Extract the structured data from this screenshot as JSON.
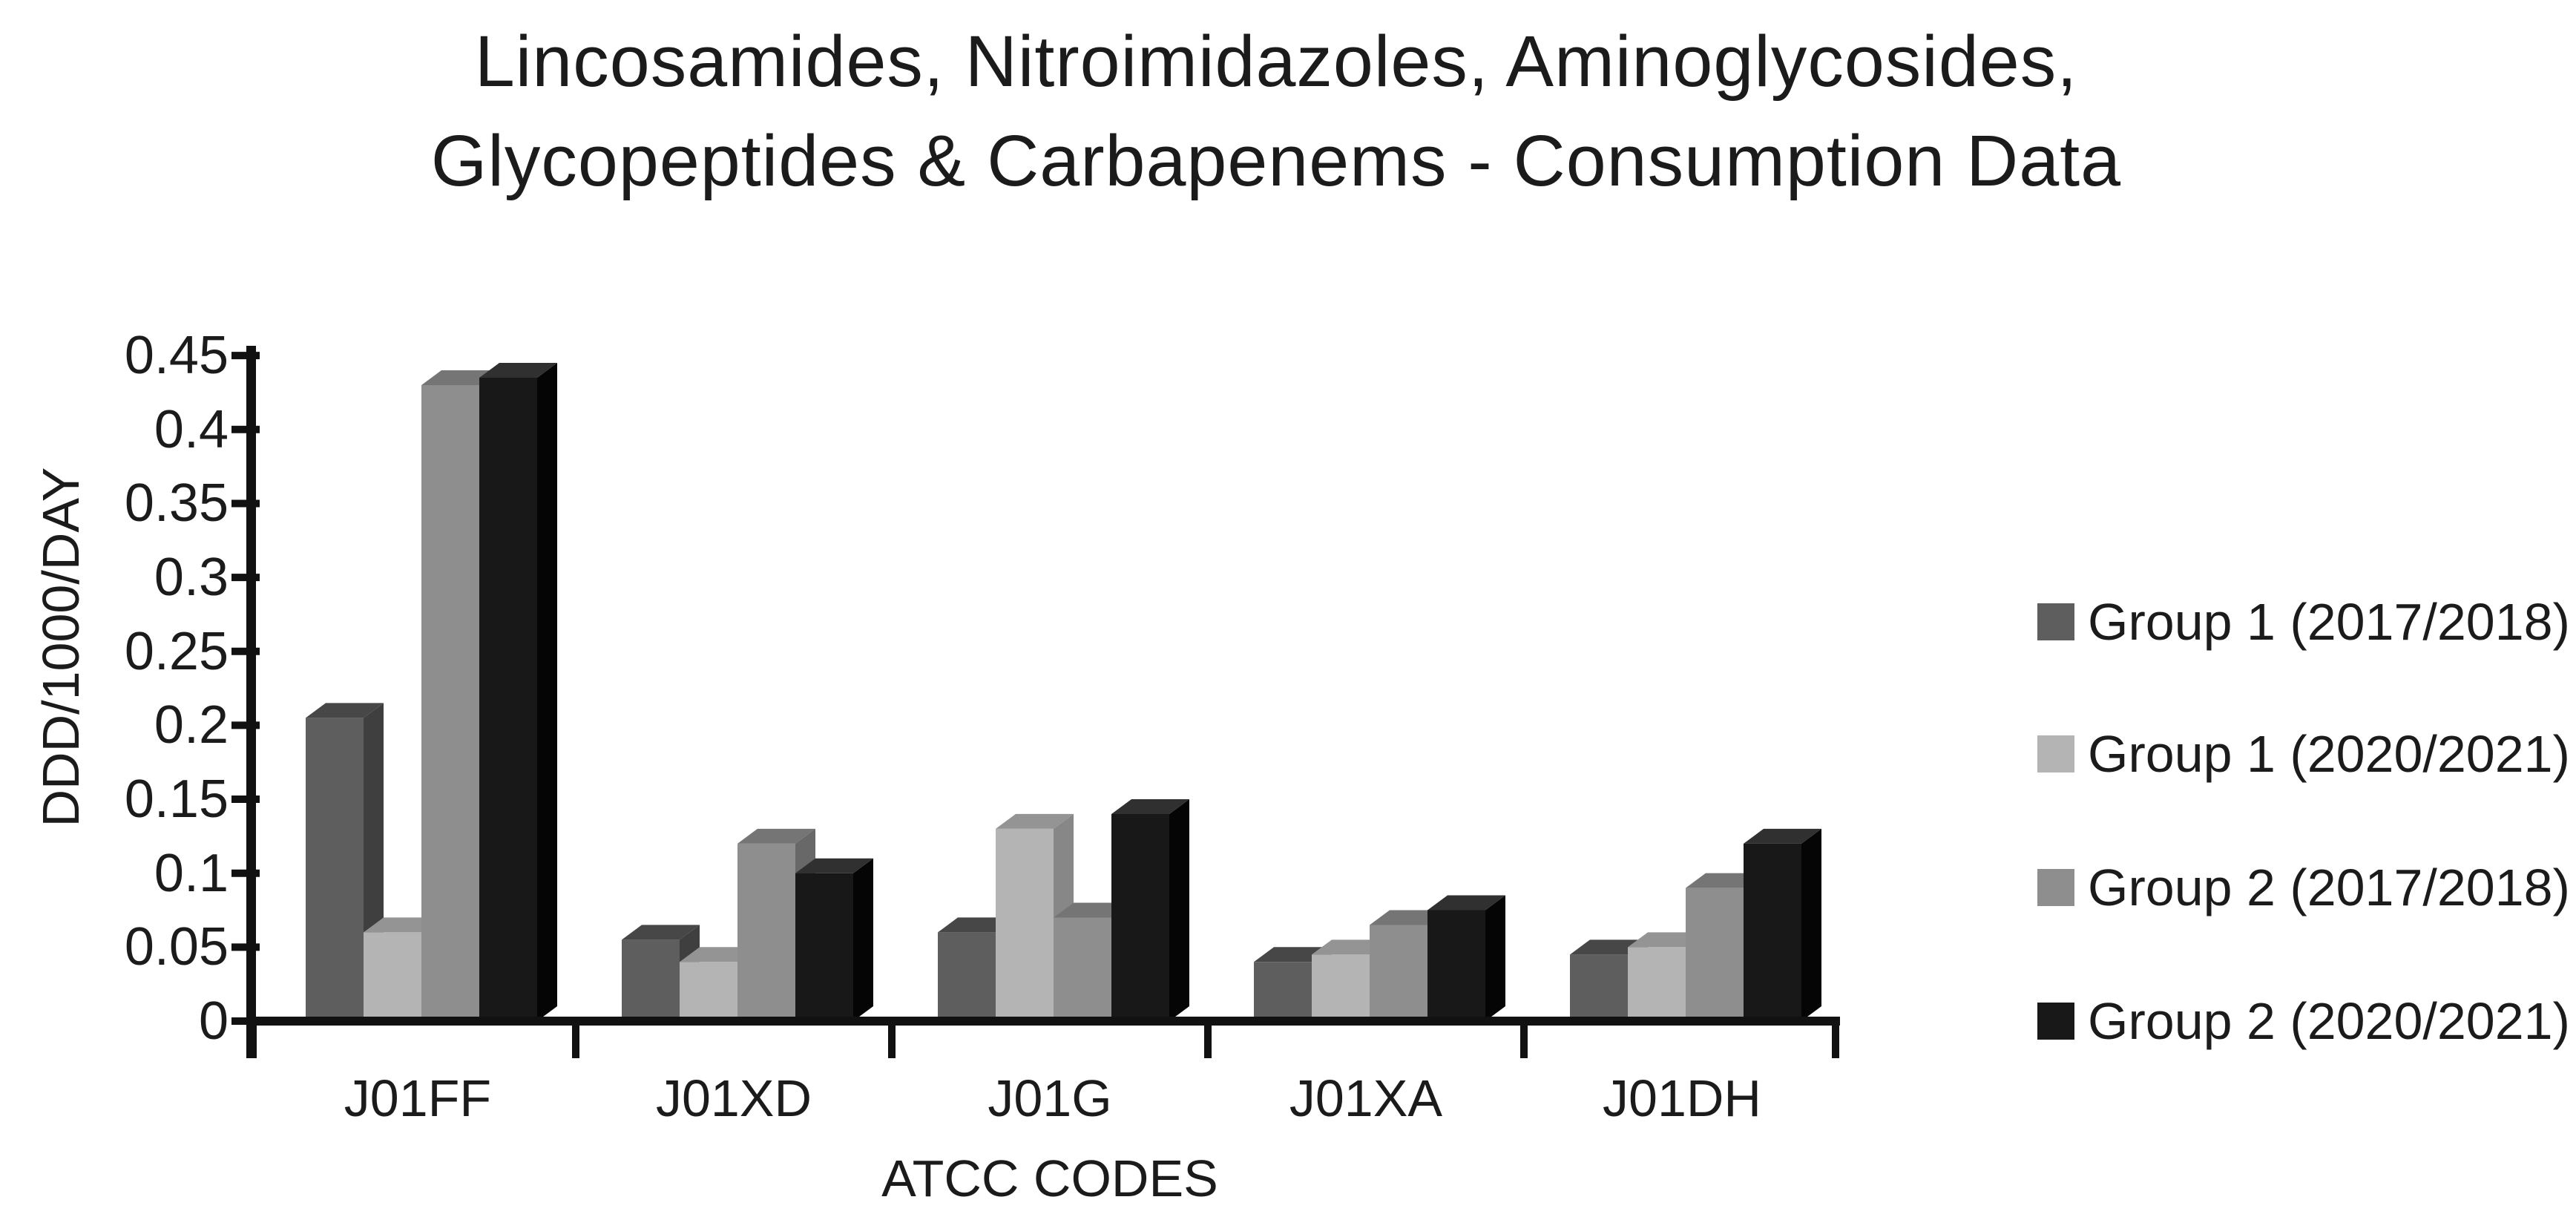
{
  "title": {
    "line1": "Lincosamides, Nitroimidazoles, Aminoglycosides,",
    "line2": "Glycopeptides & Carbapenems - Consumption Data"
  },
  "chart_data": {
    "type": "bar",
    "effect": "3d-clustered-column",
    "title": "Lincosamides, Nitroimidazoles, Aminoglycosides, Glycopeptides & Carbapenems - Consumption Data",
    "xlabel": "ATCC CODES",
    "ylabel": "DDD/1000/DAY",
    "categories": [
      "J01FF",
      "J01XD",
      "J01G",
      "J01XA",
      "J01DH"
    ],
    "series": [
      {
        "name": "Group 1 (2017/2018)",
        "color": "#5e5e5e",
        "top_color": "#474747",
        "side_color": "#3f3f3f",
        "values": [
          0.205,
          0.055,
          0.06,
          0.04,
          0.045
        ]
      },
      {
        "name": "Group 1 (2020/2021)",
        "color": "#b4b4b4",
        "top_color": "#949494",
        "side_color": "#878787",
        "values": [
          0.06,
          0.04,
          0.13,
          0.045,
          0.05
        ]
      },
      {
        "name": "Group 2 (2017/2018)",
        "color": "#8e8e8e",
        "top_color": "#757575",
        "side_color": "#686868",
        "values": [
          0.43,
          0.12,
          0.07,
          0.065,
          0.09
        ]
      },
      {
        "name": "Group 2 (2020/2021)",
        "color": "#181818",
        "top_color": "#303030",
        "side_color": "#050505",
        "values": [
          0.435,
          0.1,
          0.14,
          0.075,
          0.12
        ]
      }
    ],
    "ylim": [
      0,
      0.45
    ],
    "ytick_step": 0.05,
    "yticks": {
      "values": [
        0,
        0.05,
        0.1,
        0.15,
        0.2,
        0.25,
        0.3,
        0.35,
        0.4,
        0.45
      ],
      "labels": [
        "0",
        "0.05",
        "0.1",
        "0.15",
        "0.2",
        "0.25",
        "0.3",
        "0.35",
        "0.4",
        "0.45"
      ]
    },
    "legend_position": "right",
    "grid": false,
    "axis_color": "#111111",
    "text_color": "#1b1b1b",
    "background_color": "#ffffff"
  }
}
